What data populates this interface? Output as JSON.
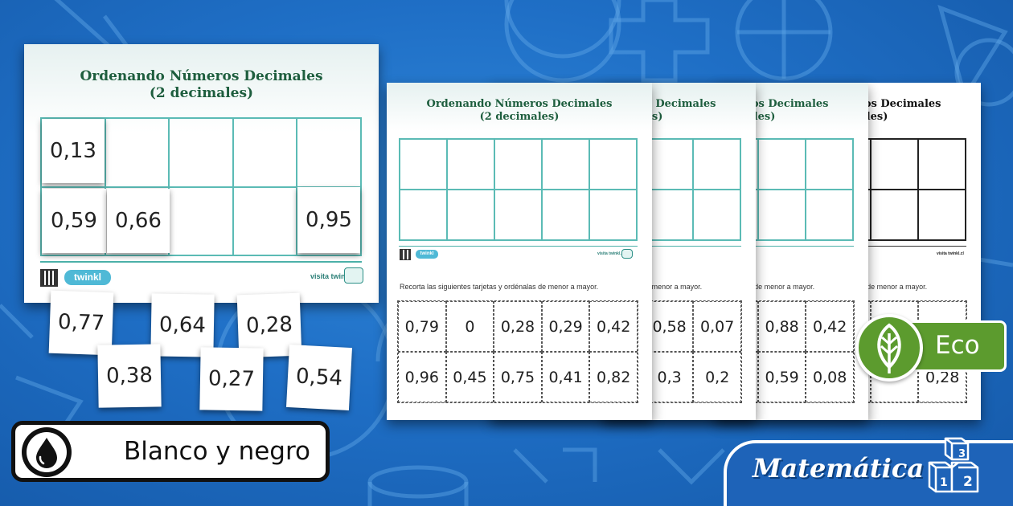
{
  "main_sheet": {
    "title_line1": "Ordenando Números Decimales",
    "title_line2": "(2 decimales)",
    "brand": "twinkl",
    "visit_text": "visita twinkl.cl",
    "placed_cards": [
      "0,13",
      "0,59",
      "0,66",
      "0,95"
    ]
  },
  "loose_cards": [
    "0,77",
    "0,64",
    "0,28",
    "0,38",
    "0,27",
    "0,54"
  ],
  "worksheet": {
    "title_line1": "Ordenando Números Decimales",
    "title_line2": "(2 decimales)",
    "brand": "twinkl",
    "visit_text": "visita twinkl.cl",
    "instruction": "Recorta las siguientes tarjetas y ordénalas de menor a mayor.",
    "cards_page1": [
      "0,79",
      "0",
      "0,28",
      "0,29",
      "0,42",
      "0,96",
      "0,45",
      "0,75",
      "0,41",
      "0,82"
    ],
    "cards_page2": [
      "0,58",
      "0,07",
      "0,3",
      "0,2"
    ],
    "cards_page3": [
      "0,88",
      "0,42",
      "0,59",
      "0,08"
    ],
    "cards_page4": [
      "0,28"
    ]
  },
  "badges": {
    "bw_label": "Blanco y negro",
    "eco_label": "Eco",
    "subject_label": "Matemática",
    "cube_digits": [
      "3",
      "1",
      "2"
    ]
  },
  "icons": {
    "bw": "ink-drop-icon",
    "eco": "leaf-icon",
    "subject": "number-cubes-icon"
  },
  "colors": {
    "background": "#1f6fc6",
    "teal_grid": "#5bbbb5",
    "title_green": "#1e5e3e",
    "eco_green": "#5c9b2e"
  }
}
